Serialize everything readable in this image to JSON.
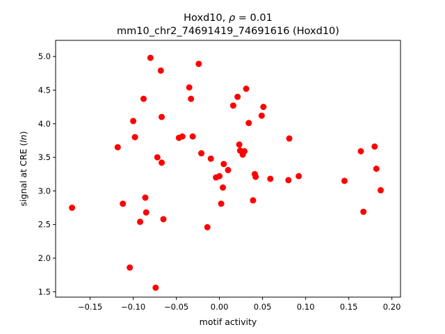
{
  "chart_data": {
    "type": "scatter",
    "title_line1": "Hoxd10, ρ = 0.01",
    "title_line2": "mm10_chr2_74691419_74691616 (Hoxd10)",
    "xlabel": "motif activity",
    "ylabel": "signal at CRE (ln)",
    "xlim": [
      -0.19,
      0.21
    ],
    "ylim": [
      1.42,
      5.24
    ],
    "xticks": [
      -0.15,
      -0.1,
      -0.05,
      0.0,
      0.05,
      0.1,
      0.15,
      0.2
    ],
    "xtick_labels": [
      "−0.15",
      "−0.10",
      "−0.05",
      "0.00",
      "0.05",
      "0.10",
      "0.15",
      "0.20"
    ],
    "yticks": [
      1.5,
      2.0,
      2.5,
      3.0,
      3.5,
      4.0,
      4.5,
      5.0
    ],
    "ytick_labels": [
      "1.5",
      "2.0",
      "2.5",
      "3.0",
      "3.5",
      "4.0",
      "4.5",
      "5.0"
    ],
    "grid": false,
    "marker_color": "#ff0000",
    "points": [
      {
        "x": -0.171,
        "y": 2.75
      },
      {
        "x": -0.118,
        "y": 3.65
      },
      {
        "x": -0.112,
        "y": 2.81
      },
      {
        "x": -0.104,
        "y": 1.86
      },
      {
        "x": -0.1,
        "y": 4.04
      },
      {
        "x": -0.098,
        "y": 3.8
      },
      {
        "x": -0.092,
        "y": 2.54
      },
      {
        "x": -0.088,
        "y": 4.37
      },
      {
        "x": -0.086,
        "y": 2.9
      },
      {
        "x": -0.085,
        "y": 2.68
      },
      {
        "x": -0.08,
        "y": 4.98
      },
      {
        "x": -0.074,
        "y": 1.56
      },
      {
        "x": -0.072,
        "y": 3.5
      },
      {
        "x": -0.068,
        "y": 4.79
      },
      {
        "x": -0.067,
        "y": 4.1
      },
      {
        "x": -0.067,
        "y": 3.42
      },
      {
        "x": -0.065,
        "y": 2.58
      },
      {
        "x": -0.047,
        "y": 3.79
      },
      {
        "x": -0.043,
        "y": 3.81
      },
      {
        "x": -0.035,
        "y": 4.54
      },
      {
        "x": -0.033,
        "y": 4.37
      },
      {
        "x": -0.031,
        "y": 3.81
      },
      {
        "x": -0.024,
        "y": 4.89
      },
      {
        "x": -0.021,
        "y": 3.56
      },
      {
        "x": -0.014,
        "y": 2.46
      },
      {
        "x": -0.01,
        "y": 3.48
      },
      {
        "x": -0.004,
        "y": 3.2
      },
      {
        "x": 0.0,
        "y": 3.22
      },
      {
        "x": 0.002,
        "y": 2.81
      },
      {
        "x": 0.004,
        "y": 3.05
      },
      {
        "x": 0.005,
        "y": 3.4
      },
      {
        "x": 0.01,
        "y": 3.31
      },
      {
        "x": 0.016,
        "y": 4.27
      },
      {
        "x": 0.021,
        "y": 4.4
      },
      {
        "x": 0.023,
        "y": 3.69
      },
      {
        "x": 0.024,
        "y": 3.6
      },
      {
        "x": 0.027,
        "y": 3.54
      },
      {
        "x": 0.029,
        "y": 3.59
      },
      {
        "x": 0.031,
        "y": 4.52
      },
      {
        "x": 0.034,
        "y": 4.01
      },
      {
        "x": 0.039,
        "y": 2.86
      },
      {
        "x": 0.041,
        "y": 3.25
      },
      {
        "x": 0.042,
        "y": 3.21
      },
      {
        "x": 0.049,
        "y": 4.12
      },
      {
        "x": 0.051,
        "y": 4.25
      },
      {
        "x": 0.059,
        "y": 3.18
      },
      {
        "x": 0.08,
        "y": 3.16
      },
      {
        "x": 0.081,
        "y": 3.78
      },
      {
        "x": 0.092,
        "y": 3.22
      },
      {
        "x": 0.145,
        "y": 3.15
      },
      {
        "x": 0.164,
        "y": 3.59
      },
      {
        "x": 0.167,
        "y": 2.69
      },
      {
        "x": 0.18,
        "y": 3.66
      },
      {
        "x": 0.182,
        "y": 3.33
      },
      {
        "x": 0.187,
        "y": 3.01
      }
    ]
  }
}
